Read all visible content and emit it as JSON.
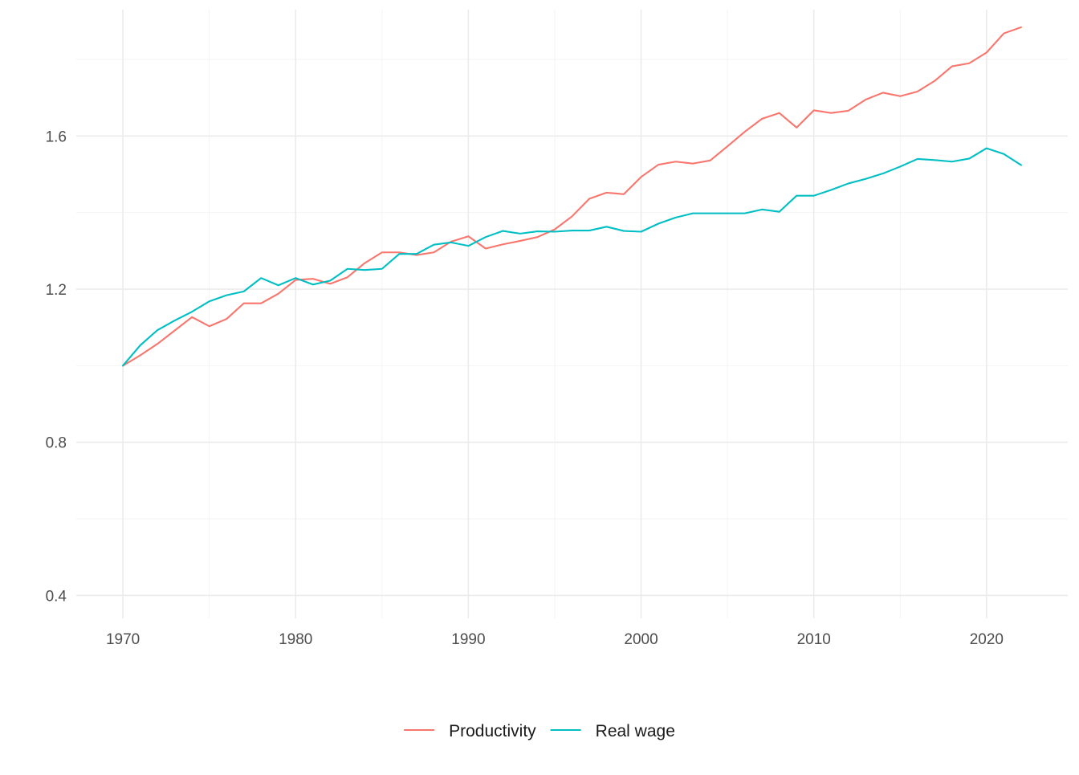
{
  "chart_data": {
    "type": "line",
    "title": "",
    "xlabel": "",
    "ylabel": "",
    "xlim": [
      1967.3,
      2024.7
    ],
    "ylim": [
      0.34,
      1.93
    ],
    "x_ticks": [
      1970,
      1980,
      1990,
      2000,
      2010,
      2020
    ],
    "x_tick_labels": [
      "1970",
      "1980",
      "1990",
      "2000",
      "2010",
      "2020"
    ],
    "y_ticks": [
      0.4,
      0.8,
      1.2,
      1.6
    ],
    "y_tick_labels": [
      "0.4",
      "0.8",
      "1.2",
      "1.6"
    ],
    "y_minor_ticks": [
      0.6,
      1.0,
      1.4,
      1.8
    ],
    "x_minor_ticks": [
      1975,
      1985,
      1995,
      2005,
      2015
    ],
    "grid": true,
    "legend_position": "bottom",
    "x": [
      1970,
      1971,
      1972,
      1973,
      1974,
      1975,
      1976,
      1977,
      1978,
      1979,
      1980,
      1981,
      1982,
      1983,
      1984,
      1985,
      1986,
      1987,
      1988,
      1989,
      1990,
      1991,
      1992,
      1993,
      1994,
      1995,
      1996,
      1997,
      1998,
      1999,
      2000,
      2001,
      2002,
      2003,
      2004,
      2005,
      2006,
      2007,
      2008,
      2009,
      2010,
      2011,
      2012,
      2013,
      2014,
      2015,
      2016,
      2017,
      2018,
      2019,
      2020,
      2021,
      2022
    ],
    "series": [
      {
        "name": "Productivity",
        "color": "#F8766D",
        "values": [
          1.0,
          1.027,
          1.057,
          1.092,
          1.127,
          1.103,
          1.122,
          1.163,
          1.163,
          1.188,
          1.224,
          1.227,
          1.214,
          1.231,
          1.268,
          1.296,
          1.296,
          1.289,
          1.296,
          1.324,
          1.338,
          1.306,
          1.317,
          1.326,
          1.336,
          1.356,
          1.39,
          1.436,
          1.452,
          1.448,
          1.493,
          1.525,
          1.533,
          1.528,
          1.536,
          1.573,
          1.611,
          1.645,
          1.66,
          1.622,
          1.667,
          1.66,
          1.666,
          1.695,
          1.713,
          1.704,
          1.716,
          1.744,
          1.782,
          1.79,
          1.818,
          1.868,
          1.884
        ]
      },
      {
        "name": "Real wage",
        "color": "#00BFC4",
        "values": [
          1.0,
          1.053,
          1.093,
          1.118,
          1.141,
          1.168,
          1.184,
          1.194,
          1.229,
          1.21,
          1.229,
          1.212,
          1.222,
          1.253,
          1.25,
          1.253,
          1.292,
          1.292,
          1.316,
          1.322,
          1.313,
          1.336,
          1.352,
          1.345,
          1.351,
          1.35,
          1.353,
          1.353,
          1.363,
          1.352,
          1.35,
          1.371,
          1.387,
          1.398,
          1.398,
          1.398,
          1.398,
          1.408,
          1.402,
          1.444,
          1.444,
          1.459,
          1.476,
          1.488,
          1.502,
          1.52,
          1.54,
          1.537,
          1.533,
          1.541,
          1.568,
          1.553,
          1.524
        ]
      }
    ]
  }
}
